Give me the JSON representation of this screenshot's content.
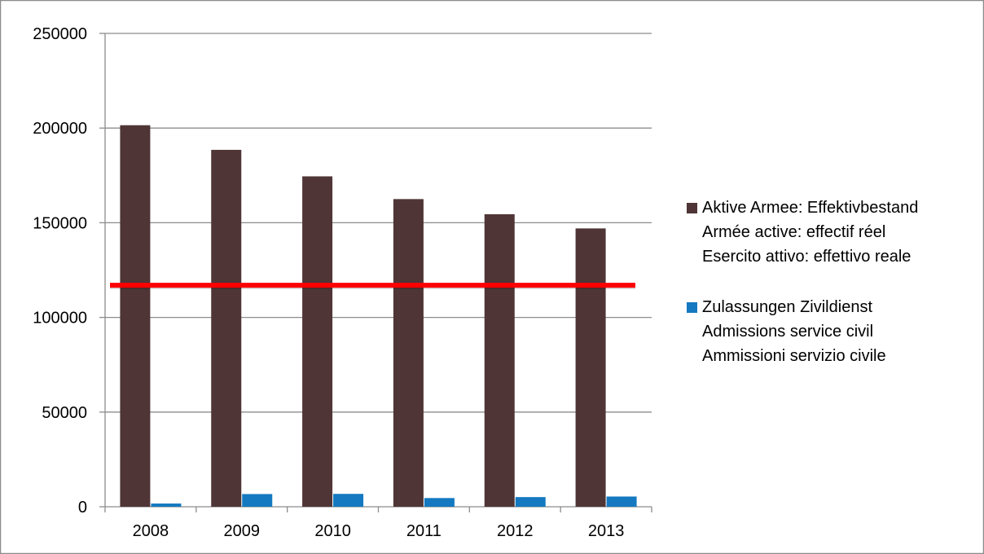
{
  "chart_data": {
    "type": "bar",
    "title": "",
    "xlabel": "",
    "ylabel": "",
    "categories": [
      "2008",
      "2009",
      "2010",
      "2011",
      "2012",
      "2013"
    ],
    "ylim": [
      0,
      250000
    ],
    "yticks": [
      "0",
      "50000",
      "100000",
      "150000",
      "200000",
      "250000"
    ],
    "y_tick_values": [
      0,
      50000,
      100000,
      150000,
      200000,
      250000
    ],
    "grid": true,
    "legend": "right",
    "series": [
      {
        "name": "Aktive Armee: Effektivbestand\nArmée active: effectif réel\nEsercito attivo: effettivo reale",
        "color": "#4f3536",
        "values": [
          201500,
          188500,
          174500,
          162500,
          154500,
          147000
        ]
      },
      {
        "name": "Zulassungen Zivildienst\nAdmissions service civil\nAmmissioni servizio civile",
        "color": "#1479c0",
        "values": [
          1700,
          6700,
          6800,
          4600,
          5100,
          5400
        ]
      }
    ],
    "reference_line": {
      "value": 117000,
      "color": "#ff0000"
    }
  }
}
